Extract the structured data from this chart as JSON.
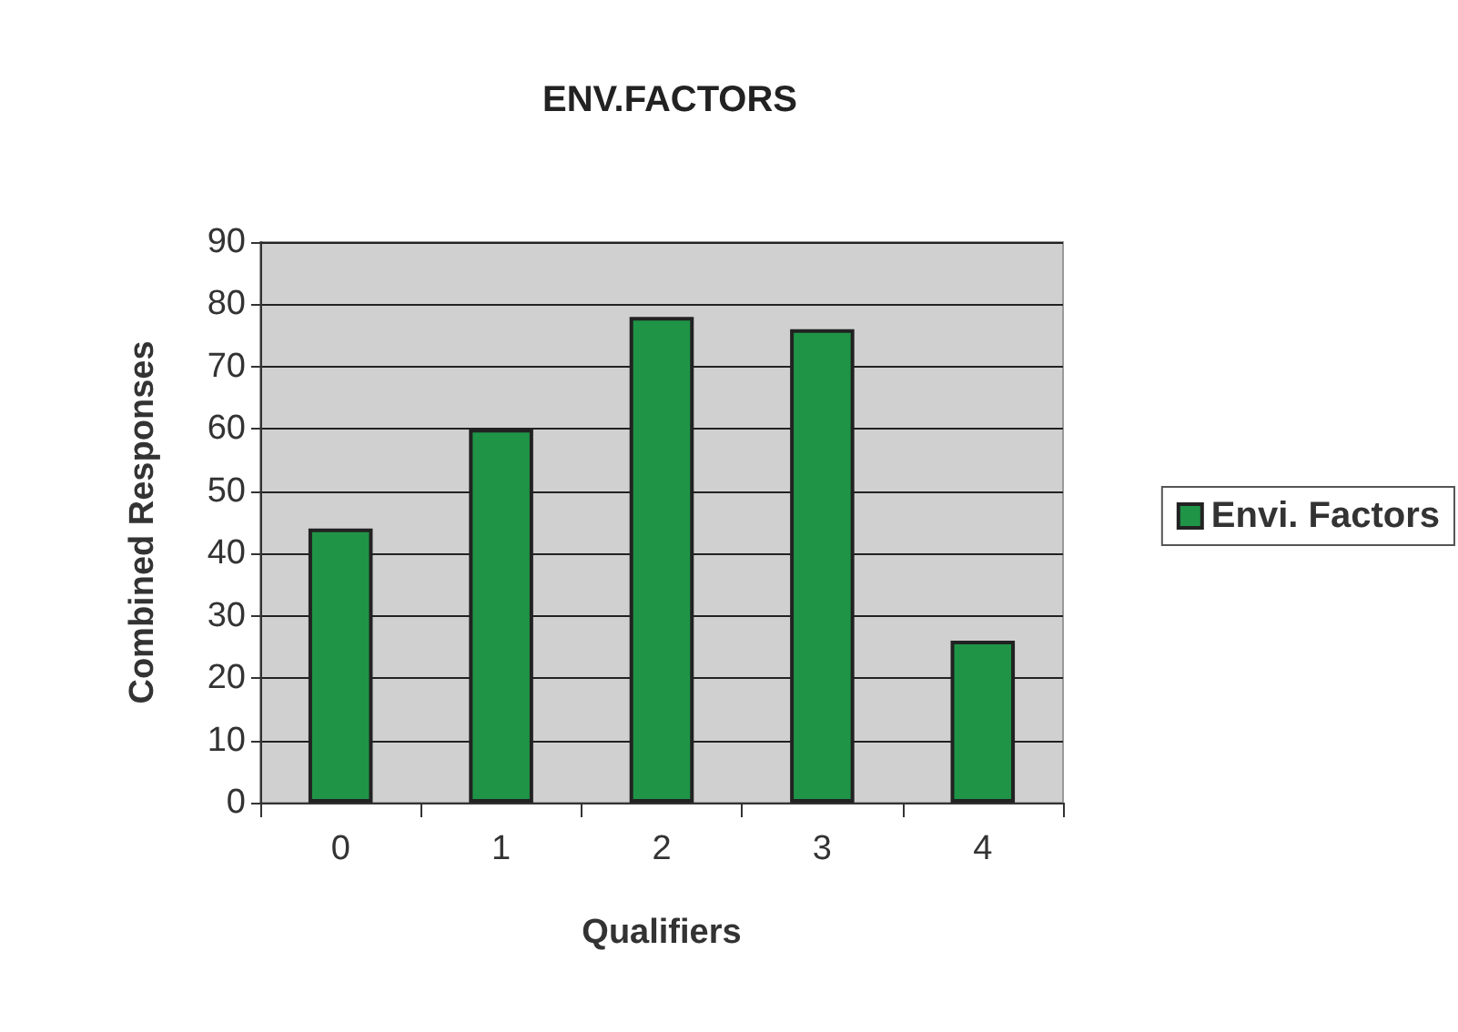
{
  "chart_data": {
    "type": "bar",
    "title": "ENV.FACTORS",
    "xlabel": "Qualifiers",
    "ylabel": "Combined Responses",
    "categories": [
      "0",
      "1",
      "2",
      "3",
      "4"
    ],
    "series": [
      {
        "name": "Envi. Factors",
        "color": "#1f9447",
        "values": [
          44,
          60,
          78,
          76,
          26
        ]
      }
    ],
    "ylim": [
      0,
      90
    ],
    "yticks": [
      0,
      10,
      20,
      30,
      40,
      50,
      60,
      70,
      80,
      90
    ],
    "grid": "y",
    "legend": "right"
  }
}
